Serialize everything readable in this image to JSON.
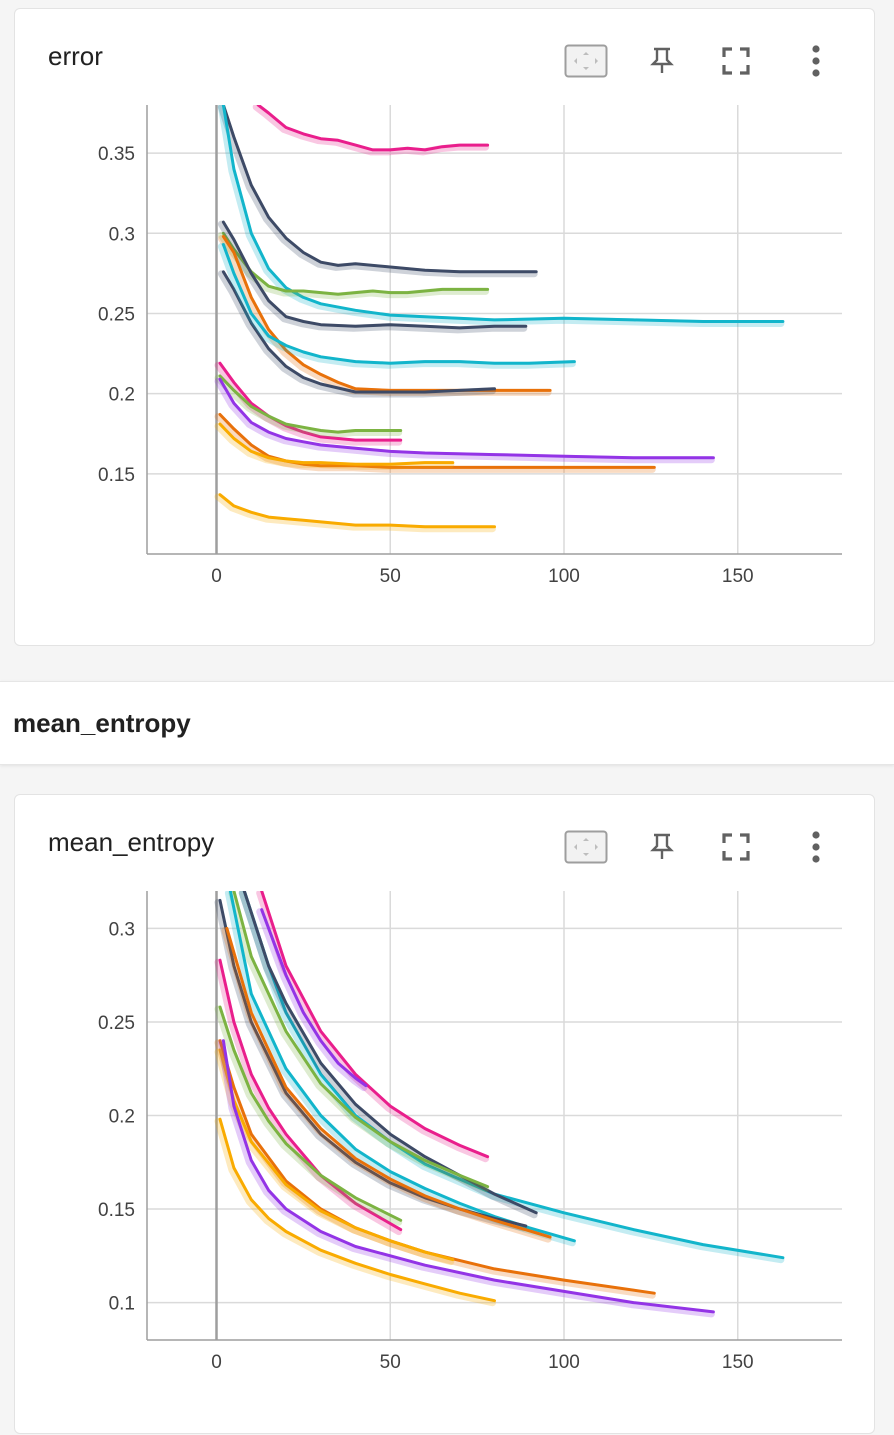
{
  "cards": [
    {
      "title": "error",
      "toolbar": {
        "fit": "fit-domain-icon",
        "pin": "pin-icon",
        "fullscreen": "fullscreen-icon",
        "more": "more-vert-icon"
      }
    },
    {
      "title": "mean_entropy",
      "toolbar": {
        "fit": "fit-domain-icon",
        "pin": "pin-icon",
        "fullscreen": "fullscreen-icon",
        "more": "more-vert-icon"
      }
    }
  ],
  "section": {
    "title": "mean_entropy"
  },
  "chart_data": [
    {
      "type": "line",
      "title": "error",
      "xlim": [
        -20,
        180
      ],
      "ylim": [
        0.1,
        0.38
      ],
      "xticks": [
        "0",
        "50",
        "100",
        "150"
      ],
      "yticks": [
        "0.15",
        "0.2",
        "0.25",
        "0.3",
        "0.35"
      ],
      "grid": true,
      "series": [
        {
          "color": "#e91e8c",
          "x": [
            12,
            15,
            20,
            25,
            30,
            35,
            40,
            45,
            50,
            55,
            60,
            65,
            70,
            78
          ],
          "y": [
            0.38,
            0.375,
            0.366,
            0.362,
            0.359,
            0.358,
            0.355,
            0.352,
            0.352,
            0.353,
            0.352,
            0.354,
            0.355,
            0.355
          ]
        },
        {
          "color": "#3d4a66",
          "x": [
            2,
            5,
            10,
            15,
            20,
            25,
            30,
            35,
            40,
            50,
            60,
            70,
            80,
            92
          ],
          "y": [
            0.38,
            0.36,
            0.33,
            0.31,
            0.297,
            0.288,
            0.282,
            0.28,
            0.281,
            0.279,
            0.277,
            0.276,
            0.276,
            0.276
          ]
        },
        {
          "color": "#12b5cb",
          "x": [
            2,
            5,
            10,
            15,
            20,
            25,
            30,
            40,
            50,
            60,
            80,
            100,
            120,
            140,
            163
          ],
          "y": [
            0.38,
            0.34,
            0.3,
            0.278,
            0.266,
            0.26,
            0.256,
            0.252,
            0.249,
            0.248,
            0.246,
            0.247,
            0.246,
            0.245,
            0.245
          ]
        },
        {
          "color": "#7cb342",
          "x": [
            2,
            5,
            10,
            15,
            20,
            25,
            30,
            35,
            40,
            45,
            50,
            55,
            60,
            65,
            70,
            78
          ],
          "y": [
            0.3,
            0.29,
            0.276,
            0.267,
            0.264,
            0.264,
            0.263,
            0.262,
            0.263,
            0.264,
            0.263,
            0.263,
            0.264,
            0.265,
            0.265,
            0.265
          ]
        },
        {
          "color": "#3d4a66",
          "x": [
            2,
            5,
            10,
            15,
            20,
            25,
            30,
            40,
            50,
            60,
            70,
            80,
            89
          ],
          "y": [
            0.307,
            0.296,
            0.275,
            0.258,
            0.248,
            0.245,
            0.243,
            0.242,
            0.243,
            0.242,
            0.241,
            0.242,
            0.242
          ]
        },
        {
          "color": "#e8710a",
          "x": [
            2,
            5,
            10,
            15,
            20,
            25,
            30,
            35,
            40,
            50,
            60,
            70,
            80,
            96
          ],
          "y": [
            0.298,
            0.288,
            0.26,
            0.24,
            0.227,
            0.218,
            0.212,
            0.207,
            0.203,
            0.202,
            0.202,
            0.202,
            0.202,
            0.202
          ]
        },
        {
          "color": "#3d4a66",
          "x": [
            2,
            5,
            10,
            15,
            20,
            25,
            30,
            40,
            50,
            60,
            70,
            80
          ],
          "y": [
            0.276,
            0.265,
            0.244,
            0.228,
            0.217,
            0.21,
            0.206,
            0.201,
            0.201,
            0.201,
            0.202,
            0.203
          ]
        },
        {
          "color": "#12b5cb",
          "x": [
            2,
            5,
            10,
            15,
            20,
            25,
            30,
            40,
            50,
            60,
            70,
            80,
            90,
            103
          ],
          "y": [
            0.293,
            0.275,
            0.25,
            0.236,
            0.23,
            0.226,
            0.223,
            0.22,
            0.219,
            0.22,
            0.22,
            0.219,
            0.219,
            0.22
          ]
        },
        {
          "color": "#e91e8c",
          "x": [
            1,
            5,
            10,
            15,
            20,
            25,
            30,
            35,
            40,
            45,
            53
          ],
          "y": [
            0.219,
            0.207,
            0.194,
            0.186,
            0.18,
            0.176,
            0.173,
            0.172,
            0.171,
            0.171,
            0.171
          ]
        },
        {
          "color": "#7cb342",
          "x": [
            1,
            5,
            10,
            15,
            20,
            25,
            30,
            35,
            40,
            45,
            53
          ],
          "y": [
            0.211,
            0.202,
            0.192,
            0.186,
            0.181,
            0.179,
            0.177,
            0.176,
            0.177,
            0.177,
            0.177
          ]
        },
        {
          "color": "#9334e6",
          "x": [
            1,
            5,
            10,
            15,
            20,
            25,
            30,
            40,
            50,
            60,
            80,
            100,
            120,
            143
          ],
          "y": [
            0.209,
            0.194,
            0.182,
            0.176,
            0.172,
            0.17,
            0.168,
            0.166,
            0.164,
            0.163,
            0.162,
            0.161,
            0.16,
            0.16
          ]
        },
        {
          "color": "#e8710a",
          "x": [
            1,
            5,
            10,
            15,
            20,
            25,
            30,
            40,
            50,
            60,
            80,
            100,
            126
          ],
          "y": [
            0.187,
            0.178,
            0.168,
            0.161,
            0.158,
            0.156,
            0.155,
            0.155,
            0.154,
            0.154,
            0.154,
            0.154,
            0.154
          ]
        },
        {
          "color": "#f9ab00",
          "x": [
            1,
            5,
            10,
            15,
            20,
            25,
            30,
            40,
            50,
            60,
            68
          ],
          "y": [
            0.181,
            0.172,
            0.164,
            0.16,
            0.158,
            0.157,
            0.157,
            0.156,
            0.156,
            0.157,
            0.157
          ]
        },
        {
          "color": "#f9ab00",
          "x": [
            1,
            5,
            10,
            15,
            20,
            25,
            30,
            40,
            50,
            60,
            70,
            80
          ],
          "y": [
            0.137,
            0.13,
            0.126,
            0.123,
            0.122,
            0.121,
            0.12,
            0.118,
            0.118,
            0.117,
            0.117,
            0.117
          ]
        }
      ]
    },
    {
      "type": "line",
      "title": "mean_entropy",
      "xlim": [
        -20,
        180
      ],
      "ylim": [
        0.08,
        0.32
      ],
      "xticks": [
        "0",
        "50",
        "100",
        "150"
      ],
      "yticks": [
        "0.1",
        "0.15",
        "0.2",
        "0.25",
        "0.3"
      ],
      "grid": true,
      "series": [
        {
          "color": "#e91e8c",
          "x": [
            13,
            20,
            30,
            40,
            50,
            60,
            70,
            78
          ],
          "y": [
            0.32,
            0.28,
            0.245,
            0.222,
            0.205,
            0.193,
            0.184,
            0.178
          ]
        },
        {
          "color": "#9334e6",
          "x": [
            13,
            20,
            25,
            30,
            35,
            40,
            43
          ],
          "y": [
            0.31,
            0.275,
            0.255,
            0.24,
            0.228,
            0.22,
            0.216
          ]
        },
        {
          "color": "#12b5cb",
          "x": [
            8,
            15,
            20,
            30,
            40,
            50,
            60,
            80,
            100,
            120,
            140,
            163
          ],
          "y": [
            0.32,
            0.28,
            0.255,
            0.222,
            0.2,
            0.186,
            0.174,
            0.158,
            0.148,
            0.139,
            0.131,
            0.124
          ]
        },
        {
          "color": "#3d4a66",
          "x": [
            8,
            15,
            20,
            30,
            40,
            50,
            60,
            70,
            80,
            92
          ],
          "y": [
            0.32,
            0.28,
            0.26,
            0.228,
            0.206,
            0.19,
            0.178,
            0.168,
            0.158,
            0.148
          ]
        },
        {
          "color": "#7cb342",
          "x": [
            5,
            10,
            20,
            30,
            40,
            50,
            60,
            70,
            78
          ],
          "y": [
            0.32,
            0.285,
            0.245,
            0.217,
            0.199,
            0.186,
            0.176,
            0.168,
            0.162
          ]
        },
        {
          "color": "#12b5cb",
          "x": [
            4,
            10,
            20,
            30,
            40,
            50,
            60,
            70,
            80,
            90,
            103
          ],
          "y": [
            0.32,
            0.265,
            0.225,
            0.2,
            0.182,
            0.17,
            0.161,
            0.153,
            0.146,
            0.14,
            0.133
          ]
        },
        {
          "color": "#3d4a66",
          "x": [
            1,
            5,
            10,
            20,
            30,
            40,
            50,
            60,
            70,
            80,
            89
          ],
          "y": [
            0.315,
            0.28,
            0.25,
            0.212,
            0.19,
            0.175,
            0.164,
            0.156,
            0.15,
            0.145,
            0.141
          ]
        },
        {
          "color": "#e8710a",
          "x": [
            3,
            10,
            20,
            30,
            40,
            50,
            60,
            70,
            80,
            96
          ],
          "y": [
            0.3,
            0.255,
            0.215,
            0.193,
            0.177,
            0.166,
            0.157,
            0.15,
            0.144,
            0.135
          ]
        },
        {
          "color": "#e91e8c",
          "x": [
            1,
            5,
            10,
            15,
            20,
            30,
            40,
            53
          ],
          "y": [
            0.283,
            0.25,
            0.222,
            0.204,
            0.19,
            0.168,
            0.153,
            0.139
          ]
        },
        {
          "color": "#7cb342",
          "x": [
            1,
            5,
            10,
            15,
            20,
            30,
            40,
            53
          ],
          "y": [
            0.258,
            0.235,
            0.212,
            0.197,
            0.185,
            0.168,
            0.156,
            0.144
          ]
        },
        {
          "color": "#e8710a",
          "x": [
            1,
            5,
            10,
            20,
            30,
            40,
            50,
            60,
            80,
            100,
            126
          ],
          "y": [
            0.24,
            0.215,
            0.19,
            0.165,
            0.15,
            0.14,
            0.133,
            0.127,
            0.118,
            0.112,
            0.105
          ]
        },
        {
          "color": "#f9ab00",
          "x": [
            1,
            5,
            10,
            20,
            30,
            40,
            50,
            60,
            68
          ],
          "y": [
            0.235,
            0.208,
            0.186,
            0.163,
            0.149,
            0.14,
            0.133,
            0.127,
            0.123
          ]
        },
        {
          "color": "#9334e6",
          "x": [
            2,
            5,
            10,
            15,
            20,
            30,
            40,
            60,
            80,
            100,
            120,
            143
          ],
          "y": [
            0.24,
            0.205,
            0.176,
            0.16,
            0.15,
            0.138,
            0.13,
            0.12,
            0.112,
            0.106,
            0.1,
            0.095
          ]
        },
        {
          "color": "#f9ab00",
          "x": [
            1,
            5,
            10,
            15,
            20,
            30,
            40,
            50,
            60,
            70,
            80
          ],
          "y": [
            0.198,
            0.172,
            0.155,
            0.145,
            0.138,
            0.128,
            0.121,
            0.115,
            0.11,
            0.105,
            0.101
          ]
        }
      ]
    }
  ]
}
